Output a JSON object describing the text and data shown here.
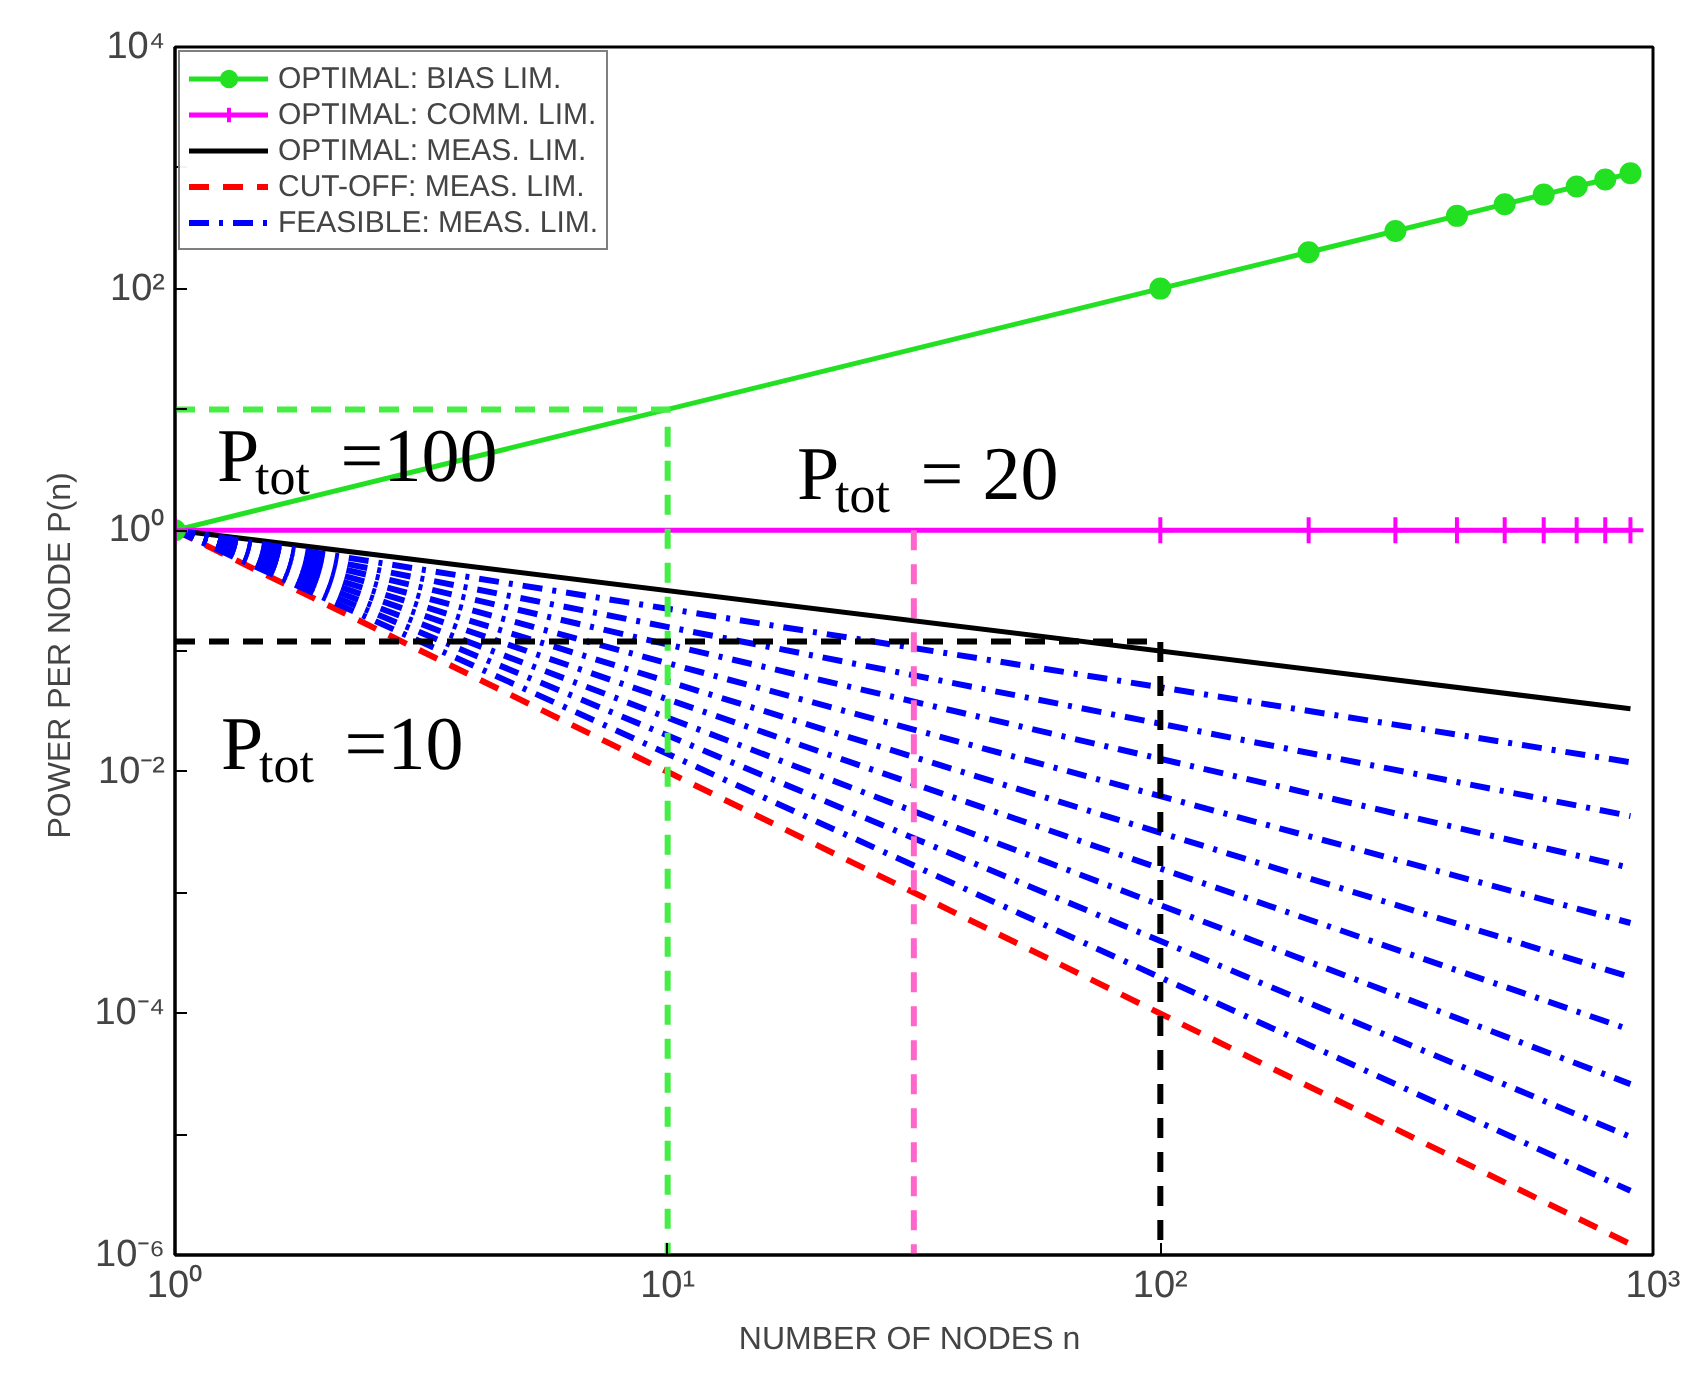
{
  "chart_data": {
    "type": "line",
    "xlabel": "NUMBER OF NODES  n",
    "ylabel": "POWER PER NODE  P(n)",
    "log": "xy",
    "xlim": [
      1,
      1000
    ],
    "ylim": [
      1e-06,
      10000
    ],
    "grid": false,
    "legend": "top left",
    "xticks": [
      {
        "value": 1,
        "label": "10⁰"
      },
      {
        "value": 10,
        "label": "10¹"
      },
      {
        "value": 100,
        "label": "10²"
      },
      {
        "value": 1000,
        "label": "10³"
      }
    ],
    "yticks": [
      {
        "value": 1e-06,
        "label": "10⁻⁶"
      },
      {
        "value": 1e-05,
        "label": null
      },
      {
        "value": 0.0001,
        "label": "10⁻⁴"
      },
      {
        "value": 0.001,
        "label": null
      },
      {
        "value": 0.01,
        "label": "10⁻²"
      },
      {
        "value": 0.1,
        "label": null
      },
      {
        "value": 1,
        "label": "10⁰"
      },
      {
        "value": 10,
        "label": null
      },
      {
        "value": 100,
        "label": "10²"
      },
      {
        "value": 1000,
        "label": null
      },
      {
        "value": 10000,
        "label": "10⁴"
      }
    ],
    "series": [
      {
        "name": "OPTIMAL: BIAS LIM.",
        "color": "#22e022",
        "marker": "circle",
        "line_style": "solid",
        "x": [
          1,
          100,
          200,
          300,
          400,
          500,
          600,
          700,
          800,
          900
        ],
        "values": [
          1,
          100,
          200,
          300,
          400,
          500,
          600,
          700,
          800,
          900
        ]
      },
      {
        "name": "OPTIMAL: COMM. LIM.",
        "color": "#ff00ff",
        "marker": "cross",
        "line_style": "solid",
        "x": [
          1,
          100,
          200,
          300,
          400,
          500,
          600,
          700,
          800,
          900
        ],
        "values": [
          1,
          1,
          1,
          1,
          1,
          1,
          1,
          1,
          1,
          1
        ]
      },
      {
        "name": "OPTIMAL: MEAS. LIM.",
        "color": "#000000",
        "marker": "none",
        "line_style": "solid",
        "x": [
          1,
          900
        ],
        "values": [
          1,
          0.0333
        ]
      },
      {
        "name": "CUT-OFF: MEAS. LIM.",
        "color": "#ff0000",
        "marker": "none",
        "line_style": "dashed",
        "x": [
          1,
          900
        ],
        "values": [
          1,
          1.23e-06
        ]
      },
      {
        "name": "FEASIBLE: MEAS. LIM.",
        "color": "#0000ff",
        "marker": "none",
        "line_style": "dashdot",
        "x": [
          1,
          900
        ],
        "values": [
          1,
          0.012
        ]
      },
      {
        "color": "#0000ff",
        "marker": "none",
        "line_style": "dashdot",
        "x": [
          1,
          900
        ],
        "values": [
          1,
          0.0043
        ]
      },
      {
        "color": "#0000ff",
        "marker": "none",
        "line_style": "dashdot",
        "x": [
          1,
          900
        ],
        "values": [
          1,
          0.0016
        ]
      },
      {
        "color": "#0000ff",
        "marker": "none",
        "line_style": "dashdot",
        "x": [
          1,
          900
        ],
        "values": [
          1,
          0.00056
        ]
      },
      {
        "color": "#0000ff",
        "marker": "none",
        "line_style": "dashdot",
        "x": [
          1,
          900
        ],
        "values": [
          1,
          0.0002
        ]
      },
      {
        "color": "#0000ff",
        "marker": "none",
        "line_style": "dashdot",
        "x": [
          1,
          900
        ],
        "values": [
          1,
          7.3e-05
        ]
      },
      {
        "color": "#0000ff",
        "marker": "none",
        "line_style": "dashdot",
        "x": [
          1,
          900
        ],
        "values": [
          1,
          2.6e-05
        ]
      },
      {
        "color": "#0000ff",
        "marker": "none",
        "line_style": "dashdot",
        "x": [
          1,
          900
        ],
        "values": [
          1,
          9.5e-06
        ]
      },
      {
        "color": "#0000ff",
        "marker": "none",
        "line_style": "dashdot",
        "x": [
          1,
          900
        ],
        "values": [
          1,
          3.4e-06
        ]
      },
      {
        "color": "#44ee44",
        "marker": "none",
        "line_style": "dashed",
        "x": [
          1,
          10,
          10
        ],
        "values": [
          10,
          10,
          1e-06
        ]
      },
      {
        "color": "#ff66cc",
        "marker": "none",
        "line_style": "dashed",
        "x": [
          31.6,
          31.6
        ],
        "values": [
          1,
          1e-06
        ]
      },
      {
        "color": "#000000",
        "marker": "none",
        "line_style": "dashed",
        "x": [
          1,
          100,
          100
        ],
        "values": [
          0.12,
          0.12,
          1e-06
        ]
      }
    ],
    "annotations": [
      "P$_{tot}$ =100",
      "P$_{tot}$ = 20",
      "P$_{tot}$ =10"
    ]
  }
}
